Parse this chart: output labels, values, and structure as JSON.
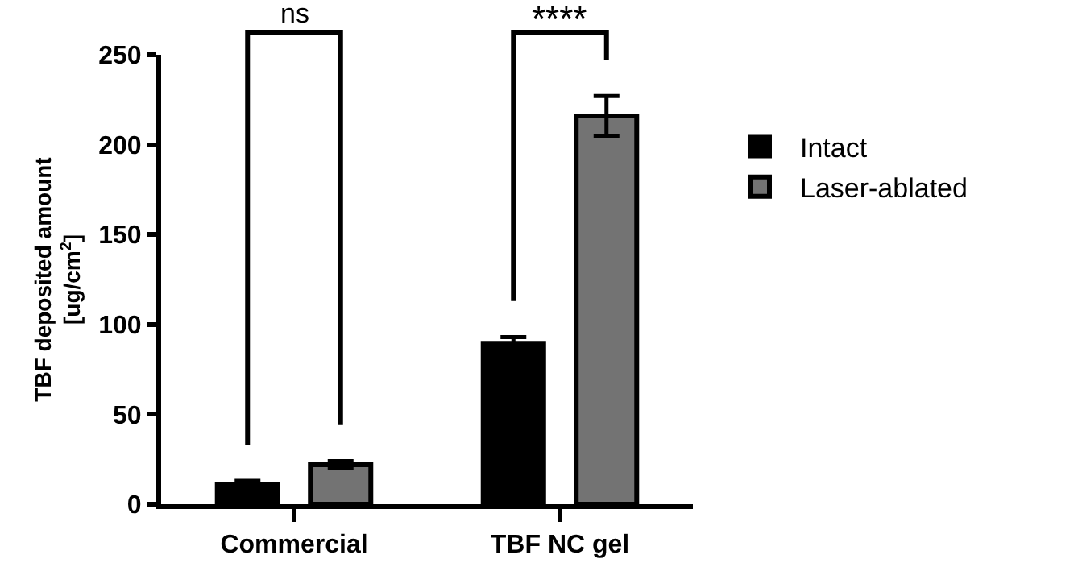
{
  "chart_data": {
    "type": "bar",
    "ylabel": "TBF deposited amount\n[ug/cm$^{2}$]",
    "categories": [
      "Commercial",
      "TBF NC gel"
    ],
    "series": [
      {
        "name": "Intact",
        "color": "#000000",
        "values": [
          11,
          89
        ],
        "errors": [
          2,
          4
        ]
      },
      {
        "name": "Laser-ablated",
        "color": "#737373",
        "values": [
          22,
          216
        ],
        "errors": [
          2,
          11
        ]
      }
    ],
    "ylim": [
      0,
      250
    ],
    "yticks": [
      0,
      50,
      100,
      150,
      200,
      250
    ],
    "grid": false,
    "legend": "right",
    "annotations": [
      "ns",
      "****"
    ]
  }
}
